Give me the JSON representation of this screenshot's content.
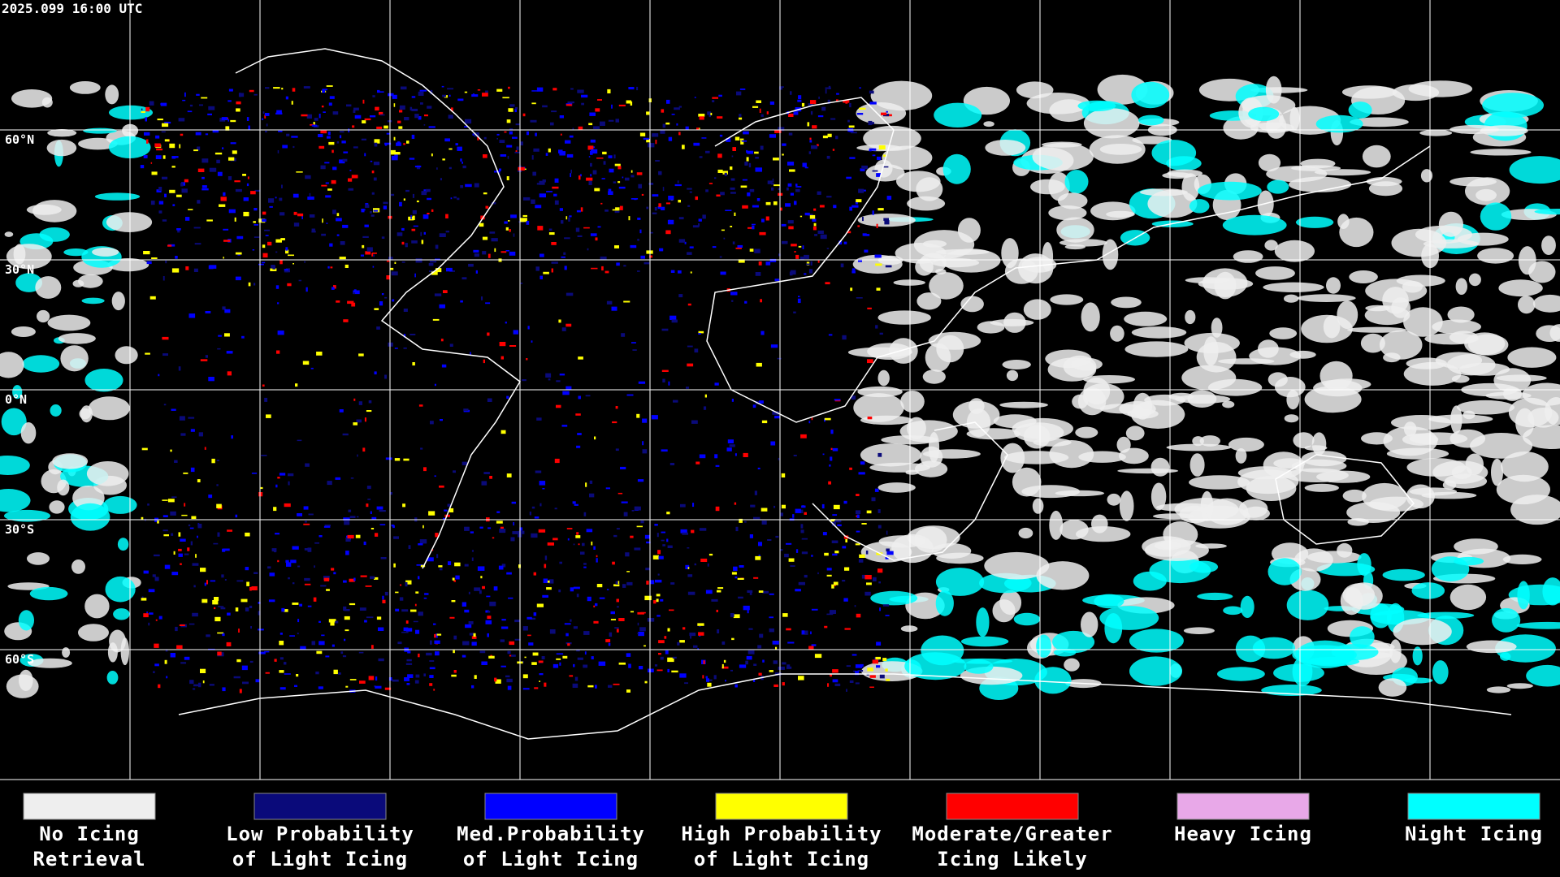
{
  "timestamp": "2025.099 16:00 UTC",
  "latitude_labels": [
    "60°N",
    "30°N",
    "0°N",
    "30°S",
    "60°S"
  ],
  "legend": [
    {
      "lines": [
        "No Icing",
        "Retrieval"
      ],
      "color": "#eeeeee"
    },
    {
      "lines": [
        "Low Probability",
        "of Light Icing"
      ],
      "color": "#0a0a7a"
    },
    {
      "lines": [
        "Med.Probability",
        "of Light Icing"
      ],
      "color": "#0000ff"
    },
    {
      "lines": [
        "High Probability",
        "of Light Icing"
      ],
      "color": "#ffff00"
    },
    {
      "lines": [
        "Moderate/Greater",
        "Icing Likely"
      ],
      "color": "#ff0000"
    },
    {
      "lines": [
        "Heavy Icing"
      ],
      "color": "#e8a8e8"
    },
    {
      "lines": [
        "Night Icing"
      ],
      "color": "#00ffff"
    }
  ]
}
